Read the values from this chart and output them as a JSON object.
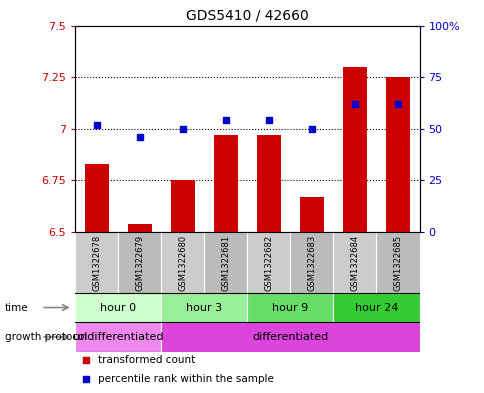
{
  "title": "GDS5410 / 42660",
  "samples": [
    "GSM1322678",
    "GSM1322679",
    "GSM1322680",
    "GSM1322681",
    "GSM1322682",
    "GSM1322683",
    "GSM1322684",
    "GSM1322685"
  ],
  "transformed_count": [
    6.83,
    6.54,
    6.75,
    6.97,
    6.97,
    6.67,
    7.3,
    7.25
  ],
  "percentile_rank": [
    52,
    46,
    50,
    54,
    54,
    50,
    62,
    62
  ],
  "ylim_left": [
    6.5,
    7.5
  ],
  "ylim_right": [
    0,
    100
  ],
  "yticks_left": [
    6.5,
    6.75,
    7.0,
    7.25,
    7.5
  ],
  "yticks_right": [
    0,
    25,
    50,
    75,
    100
  ],
  "ytick_labels_left": [
    "6.5",
    "6.75",
    "7",
    "7.25",
    "7.5"
  ],
  "ytick_labels_right": [
    "0",
    "25",
    "50",
    "75",
    "100%"
  ],
  "hlines": [
    6.75,
    7.0,
    7.25
  ],
  "bar_color": "#cc0000",
  "dot_color": "#0000cc",
  "bar_bottom": 6.5,
  "time_groups": [
    {
      "label": "hour 0",
      "start": 0,
      "end": 2,
      "color": "#ccffcc"
    },
    {
      "label": "hour 3",
      "start": 2,
      "end": 4,
      "color": "#99ee99"
    },
    {
      "label": "hour 9",
      "start": 4,
      "end": 6,
      "color": "#66dd66"
    },
    {
      "label": "hour 24",
      "start": 6,
      "end": 8,
      "color": "#33cc33"
    }
  ],
  "protocol_groups": [
    {
      "label": "undifferentiated",
      "start": 0,
      "end": 2,
      "color": "#ee88ee"
    },
    {
      "label": "differentiated",
      "start": 2,
      "end": 8,
      "color": "#dd44dd"
    }
  ],
  "legend_items": [
    {
      "label": "transformed count",
      "color": "#cc0000"
    },
    {
      "label": "percentile rank within the sample",
      "color": "#0000cc"
    }
  ],
  "bg_color": "#ffffff",
  "sample_bg_even": "#cccccc",
  "sample_bg_odd": "#bbbbbb",
  "border_color": "#888888"
}
